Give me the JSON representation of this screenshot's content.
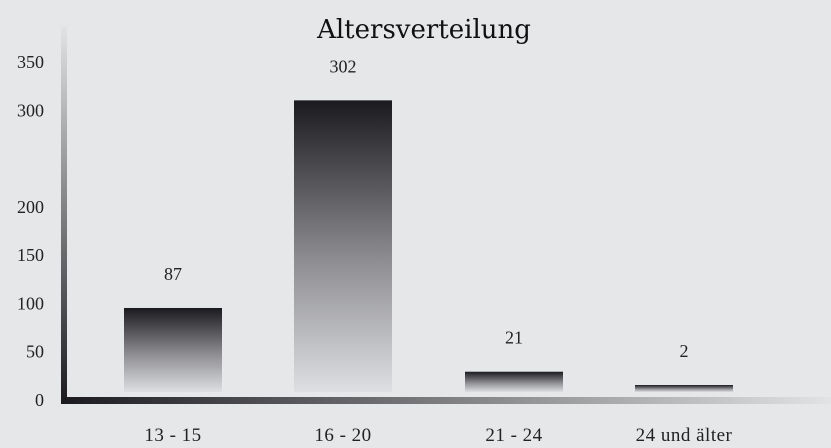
{
  "chart_data": {
    "type": "bar",
    "title": "Altersverteilung",
    "categories": [
      "13 - 15",
      "16 - 20",
      "21 - 24",
      "24 und älter"
    ],
    "values": [
      87,
      302,
      21,
      2
    ],
    "data_labels": [
      "87",
      "302",
      "21",
      "2"
    ],
    "y_ticks": [
      "0",
      "50",
      "100",
      "150",
      "200",
      "300",
      "350"
    ],
    "legend": "none",
    "grid": false
  }
}
